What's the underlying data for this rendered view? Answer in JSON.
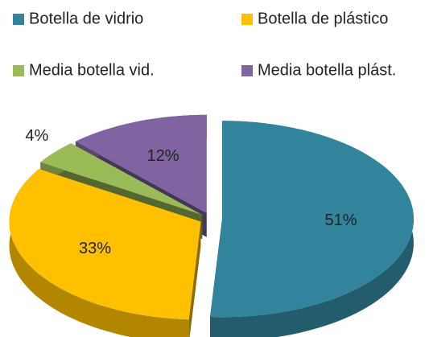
{
  "chart_data": {
    "type": "pie",
    "categories": [
      "Botella de vidrio",
      "Botella de plástico",
      "Media botella vid.",
      "Media botella plást."
    ],
    "values": [
      51,
      33,
      4,
      12
    ],
    "value_labels": [
      "51%",
      "33%",
      "4%",
      "12%"
    ],
    "colors": [
      "#31849b",
      "#ffc000",
      "#9bbb59",
      "#8064a2"
    ],
    "legend": "top"
  }
}
